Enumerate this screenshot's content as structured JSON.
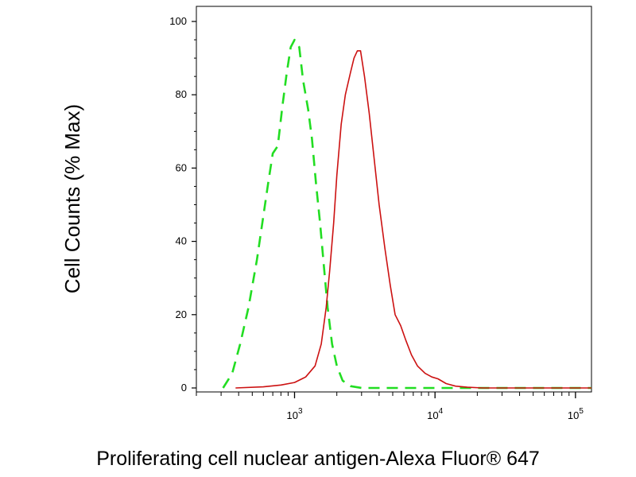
{
  "chart_data": {
    "type": "line",
    "title": "",
    "xlabel": "Proliferating cell nuclear antigen-Alexa Fluor® 647",
    "ylabel": "Cell Counts (% Max)",
    "x_scale": "log",
    "xlim": [
      200,
      130000
    ],
    "ylim": [
      0,
      105
    ],
    "x_ticks": [
      {
        "value": 1000,
        "base": "10",
        "exp": "3"
      },
      {
        "value": 10000,
        "base": "10",
        "exp": "4"
      },
      {
        "value": 100000,
        "base": "10",
        "exp": "5"
      }
    ],
    "y_ticks": [
      {
        "value": 0,
        "label": "0"
      },
      {
        "value": 20,
        "label": "20"
      },
      {
        "value": 40,
        "label": "40"
      },
      {
        "value": 60,
        "label": "60"
      },
      {
        "value": 80,
        "label": "80"
      },
      {
        "value": 100,
        "label": "100"
      }
    ],
    "grid": false,
    "series": [
      {
        "color": "#22dd22",
        "style": "dashed",
        "points": [
          [
            310,
            0
          ],
          [
            360,
            4
          ],
          [
            410,
            12
          ],
          [
            470,
            22
          ],
          [
            540,
            35
          ],
          [
            600,
            47
          ],
          [
            650,
            56
          ],
          [
            700,
            64
          ],
          [
            760,
            66
          ],
          [
            820,
            77
          ],
          [
            880,
            86
          ],
          [
            940,
            93
          ],
          [
            1000,
            95
          ],
          [
            1080,
            93
          ],
          [
            1150,
            84
          ],
          [
            1250,
            76
          ],
          [
            1330,
            68
          ],
          [
            1420,
            56
          ],
          [
            1520,
            45
          ],
          [
            1620,
            33
          ],
          [
            1720,
            22
          ],
          [
            1850,
            12
          ],
          [
            2000,
            6
          ],
          [
            2200,
            2
          ],
          [
            2500,
            0.5
          ],
          [
            3000,
            0
          ],
          [
            10000,
            0
          ],
          [
            40000,
            0
          ],
          [
            130000,
            0
          ]
        ]
      },
      {
        "color": "#cc1111",
        "style": "solid",
        "points": [
          [
            380,
            0
          ],
          [
            600,
            0.3
          ],
          [
            800,
            0.8
          ],
          [
            1000,
            1.5
          ],
          [
            1200,
            3
          ],
          [
            1400,
            6
          ],
          [
            1550,
            12
          ],
          [
            1680,
            22
          ],
          [
            1780,
            32
          ],
          [
            1900,
            45
          ],
          [
            2000,
            58
          ],
          [
            2150,
            72
          ],
          [
            2300,
            80
          ],
          [
            2500,
            86
          ],
          [
            2650,
            90
          ],
          [
            2800,
            92
          ],
          [
            2950,
            92
          ],
          [
            3150,
            85
          ],
          [
            3400,
            75
          ],
          [
            3700,
            62
          ],
          [
            4000,
            50
          ],
          [
            4400,
            38
          ],
          [
            4800,
            28
          ],
          [
            5200,
            20
          ],
          [
            5700,
            17
          ],
          [
            6200,
            13
          ],
          [
            6800,
            9
          ],
          [
            7500,
            6
          ],
          [
            8500,
            4
          ],
          [
            9500,
            3
          ],
          [
            10500,
            2.5
          ],
          [
            12000,
            1.2
          ],
          [
            14000,
            0.5
          ],
          [
            17000,
            0.2
          ],
          [
            22000,
            0
          ],
          [
            50000,
            0
          ],
          [
            130000,
            0
          ]
        ]
      }
    ]
  }
}
